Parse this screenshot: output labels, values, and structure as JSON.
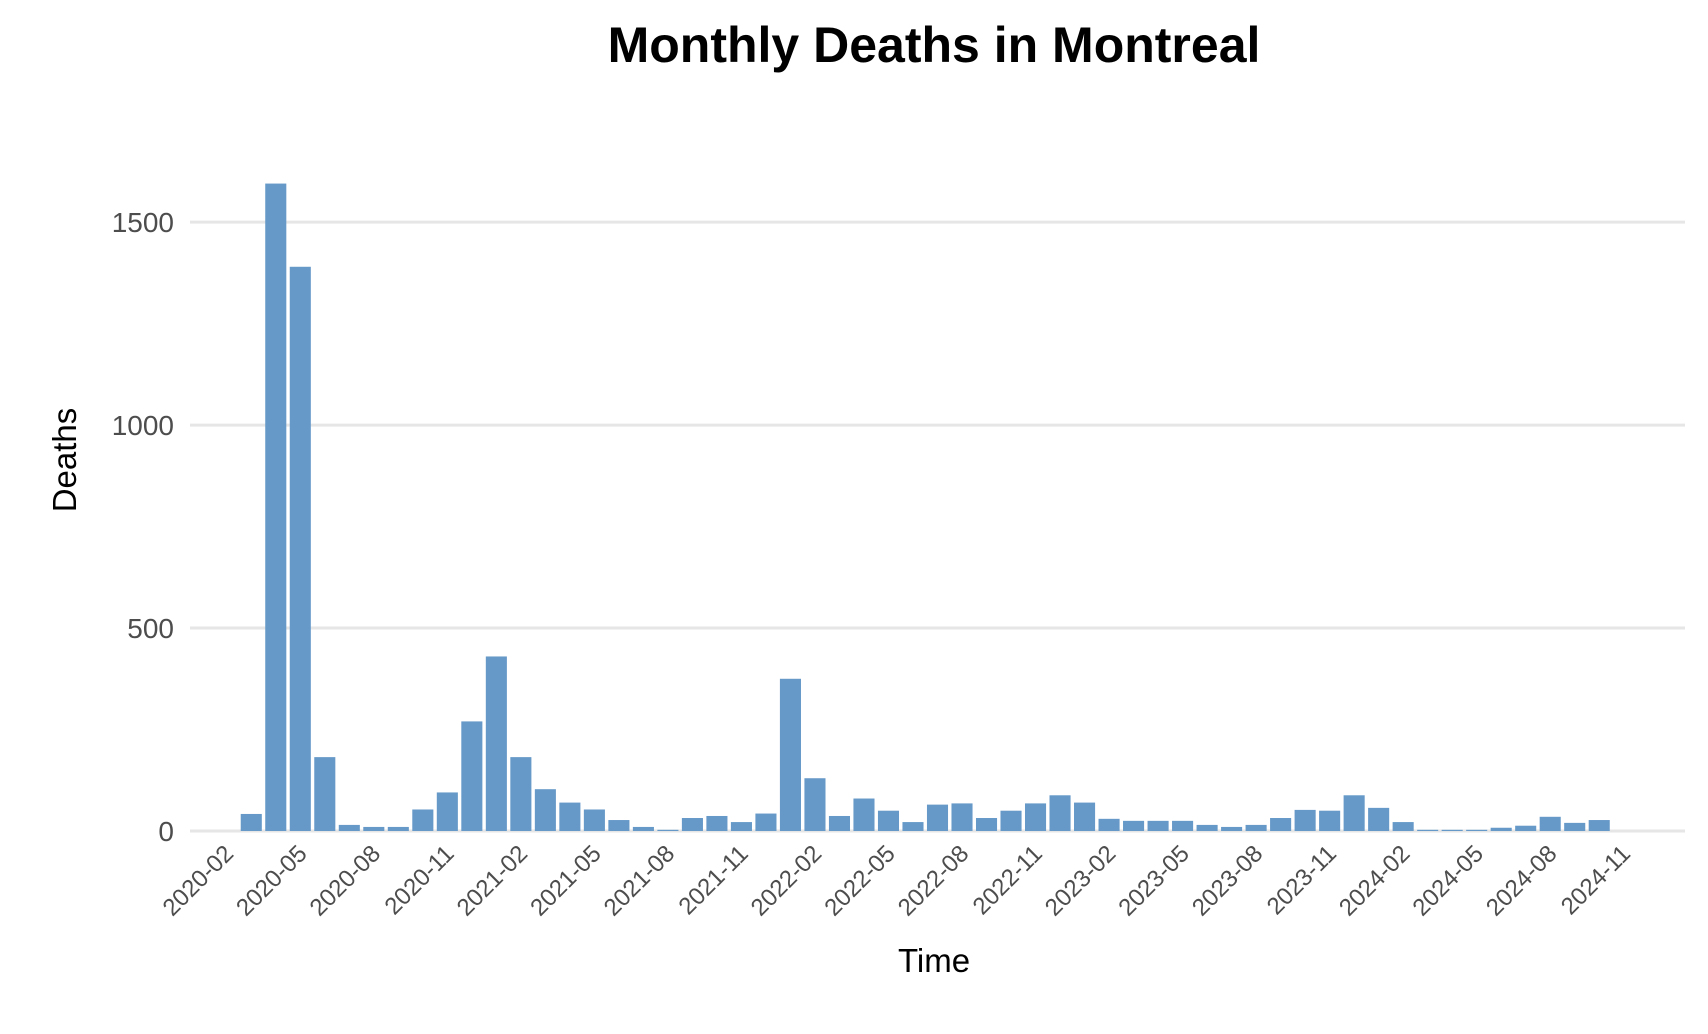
{
  "chart_data": {
    "type": "bar",
    "title": "Monthly Deaths in Montreal",
    "xlabel": "Time",
    "ylabel": "Deaths",
    "ylim": [
      0,
      1690
    ],
    "yticks": [
      0,
      500,
      1000,
      1500
    ],
    "xlim": [
      "2020-01",
      "2025-02"
    ],
    "xticks": [
      "2020-02",
      "2020-05",
      "2020-08",
      "2020-11",
      "2021-02",
      "2021-05",
      "2021-08",
      "2021-11",
      "2022-02",
      "2022-05",
      "2022-08",
      "2022-11",
      "2023-02",
      "2023-05",
      "2023-08",
      "2023-11",
      "2024-02",
      "2024-05",
      "2024-08",
      "2024-11"
    ],
    "grid": "horizontal",
    "bar_color": "#6699c8",
    "categories": [
      "2020-03",
      "2020-04",
      "2020-05",
      "2020-06",
      "2020-07",
      "2020-08",
      "2020-09",
      "2020-10",
      "2020-11",
      "2020-12",
      "2021-01",
      "2021-02",
      "2021-03",
      "2021-04",
      "2021-05",
      "2021-06",
      "2021-07",
      "2021-08",
      "2021-09",
      "2021-10",
      "2021-11",
      "2021-12",
      "2022-01",
      "2022-02",
      "2022-03",
      "2022-04",
      "2022-05",
      "2022-06",
      "2022-07",
      "2022-08",
      "2022-09",
      "2022-10",
      "2022-11",
      "2022-12",
      "2023-01",
      "2023-02",
      "2023-03",
      "2023-04",
      "2023-05",
      "2023-06",
      "2023-07",
      "2023-08",
      "2023-09",
      "2023-10",
      "2023-11",
      "2023-12",
      "2024-01",
      "2024-02",
      "2024-03",
      "2024-04",
      "2024-05",
      "2024-06",
      "2024-07",
      "2024-08",
      "2024-09",
      "2024-10"
    ],
    "values": [
      42,
      1595,
      1390,
      182,
      15,
      10,
      10,
      53,
      95,
      270,
      430,
      182,
      103,
      70,
      53,
      27,
      10,
      3,
      32,
      37,
      22,
      43,
      375,
      130,
      37,
      80,
      50,
      22,
      65,
      68,
      32,
      50,
      68,
      88,
      70,
      30,
      25,
      25,
      25,
      15,
      10,
      15,
      32,
      52,
      50,
      88,
      57,
      22,
      3,
      3,
      3,
      8,
      13,
      35,
      20,
      27
    ]
  }
}
